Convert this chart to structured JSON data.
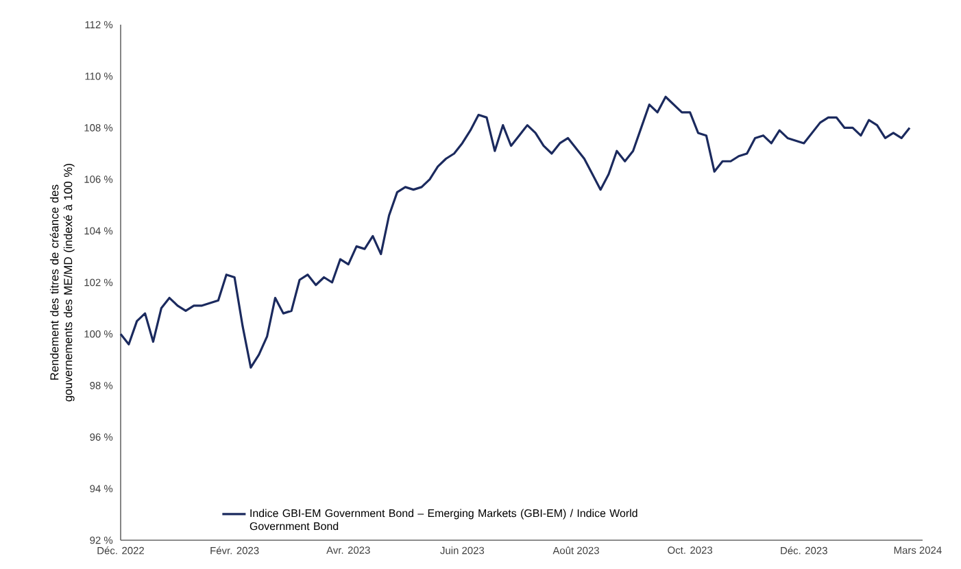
{
  "chart_data": {
    "type": "line",
    "ylabel": "Rendement des titres de créance des gouvernements des ME/MD (indexé à 100 %)",
    "categories": [
      "Déc. 2022",
      null,
      null,
      null,
      null,
      null,
      null,
      null,
      null,
      null,
      null,
      null,
      null,
      null,
      "Févr. 2023",
      null,
      null,
      null,
      null,
      null,
      null,
      null,
      null,
      null,
      null,
      null,
      null,
      null,
      "Avr. 2023",
      null,
      null,
      null,
      null,
      null,
      null,
      null,
      null,
      null,
      null,
      null,
      null,
      null,
      "Juin 2023",
      null,
      null,
      null,
      null,
      null,
      null,
      null,
      null,
      null,
      null,
      null,
      null,
      null,
      "Août 2023",
      null,
      null,
      null,
      null,
      null,
      null,
      null,
      null,
      null,
      null,
      null,
      null,
      null,
      "Oct. 2023",
      null,
      null,
      null,
      null,
      null,
      null,
      null,
      null,
      null,
      null,
      null,
      null,
      null,
      "Déc. 2023",
      null,
      null,
      null,
      null,
      null,
      null,
      null,
      null,
      null,
      null,
      null,
      null,
      null,
      "Mars 2024"
    ],
    "ylim": [
      92,
      112
    ],
    "yticks": [
      {
        "value": 92,
        "label": "92 %"
      },
      {
        "value": 94,
        "label": "94 %"
      },
      {
        "value": 96,
        "label": "96 %"
      },
      {
        "value": 98,
        "label": "98 %"
      },
      {
        "value": 100,
        "label": "100 %"
      },
      {
        "value": 102,
        "label": "102 %"
      },
      {
        "value": 104,
        "label": "104 %"
      },
      {
        "value": 106,
        "label": "106 %"
      },
      {
        "value": 108,
        "label": "108 %"
      },
      {
        "value": 110,
        "label": "110 %"
      },
      {
        "value": 112,
        "label": "112 %"
      }
    ],
    "grid": false,
    "legend": "bottom left",
    "marker": "none",
    "line_style": "solid",
    "series": [
      {
        "name": "Indice GBI-EM Government Bond – Emerging Markets (GBI-EM) / Indice World Government Bond",
        "color": "#1b2a5e",
        "values": [
          100.0,
          99.6,
          100.5,
          100.8,
          99.7,
          101.0,
          101.4,
          101.1,
          100.9,
          101.1,
          101.1,
          101.2,
          101.3,
          102.3,
          102.2,
          100.3,
          98.7,
          99.2,
          99.9,
          101.4,
          100.8,
          100.9,
          102.1,
          102.3,
          101.9,
          102.2,
          102.0,
          102.9,
          102.7,
          103.4,
          103.3,
          103.8,
          103.1,
          104.6,
          105.5,
          105.7,
          105.6,
          105.7,
          106.0,
          106.5,
          106.8,
          107.0,
          107.4,
          107.9,
          108.5,
          108.4,
          107.1,
          108.1,
          107.3,
          107.7,
          108.1,
          107.8,
          107.3,
          107.0,
          107.4,
          107.6,
          107.2,
          106.8,
          106.2,
          105.6,
          106.2,
          107.1,
          106.7,
          107.1,
          108.0,
          108.9,
          108.6,
          109.2,
          108.9,
          108.6,
          108.6,
          107.8,
          107.7,
          106.3,
          106.7,
          106.7,
          106.9,
          107.0,
          107.6,
          107.7,
          107.4,
          107.9,
          107.6,
          107.5,
          107.4,
          107.8,
          108.2,
          108.4,
          108.4,
          108.0,
          108.0,
          107.7,
          108.3,
          108.1,
          107.6,
          107.8,
          107.6,
          108.0,
          null
        ]
      }
    ]
  }
}
